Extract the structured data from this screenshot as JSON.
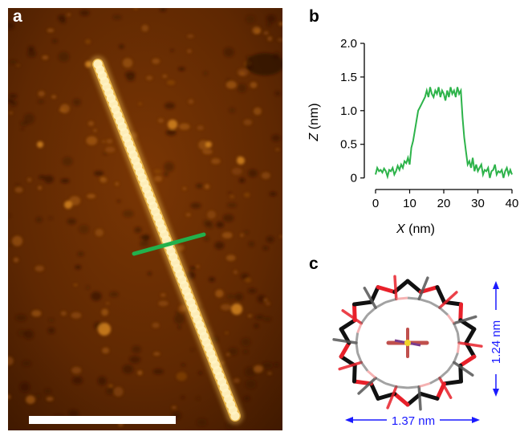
{
  "panels": {
    "a": {
      "letter": "a"
    },
    "b": {
      "letter": "b"
    },
    "c": {
      "letter": "c"
    }
  },
  "colors": {
    "profile_line": "#2db34a",
    "afm_background": "#6b2e02",
    "afm_fiber": "#f7dd8a",
    "afm_linecut": "#22b14c",
    "scale_bar": "#ffffff",
    "dimension_arrows": "#1a1aff",
    "bond_carbon": "#111111",
    "bond_oxygen": "#e8202a"
  },
  "chart_data": {
    "type": "line",
    "xlabel_var": "X",
    "xlabel_unit": "(nm)",
    "ylabel_var": "Z",
    "ylabel_unit": "(nm)",
    "xlim": [
      0,
      40
    ],
    "ylim": [
      -0.1,
      2.0
    ],
    "xticks": [
      0,
      10,
      20,
      30,
      40
    ],
    "yticks": [
      0,
      0.5,
      1.0,
      1.5,
      2.0
    ],
    "xtick_labels": [
      "0",
      "10",
      "20",
      "30",
      "40"
    ],
    "ytick_labels": [
      "0",
      "0.5",
      "1.0",
      "1.5",
      "2.0"
    ],
    "series": [
      {
        "x": [
          0,
          0.5,
          1,
          1.5,
          2,
          2.5,
          3,
          3.5,
          4,
          4.5,
          5,
          5.5,
          6,
          6.5,
          7,
          7.5,
          8,
          8.5,
          9,
          9.5,
          10,
          10.5,
          11,
          11.5,
          12,
          12.5,
          13,
          13.5,
          14,
          14.5,
          15,
          15.5,
          16,
          16.5,
          17,
          17.5,
          18,
          18.5,
          19,
          19.5,
          20,
          20.5,
          21,
          21.5,
          22,
          22.5,
          23,
          23.5,
          24,
          24.5,
          25,
          25.5,
          26,
          26.5,
          27,
          27.5,
          28,
          28.5,
          29,
          29.5,
          30,
          30.5,
          31,
          31.5,
          32,
          32.5,
          33,
          33.5,
          34,
          34.5,
          35,
          35.5,
          36,
          36.5,
          37,
          37.5,
          38,
          38.5,
          39,
          39.5,
          40
        ],
        "y": [
          0.05,
          0.15,
          0.1,
          0.12,
          0.08,
          0.14,
          0.1,
          0.02,
          0.12,
          0.1,
          0.15,
          0.05,
          0.1,
          0.18,
          0.12,
          0.2,
          0.15,
          0.25,
          0.22,
          0.3,
          0.2,
          0.45,
          0.55,
          0.7,
          0.85,
          1.0,
          1.05,
          1.1,
          1.15,
          1.2,
          1.3,
          1.2,
          1.35,
          1.25,
          1.2,
          1.3,
          1.25,
          1.35,
          1.2,
          1.3,
          1.25,
          1.15,
          1.3,
          1.2,
          1.35,
          1.25,
          1.3,
          1.2,
          1.35,
          1.25,
          1.3,
          0.9,
          0.6,
          0.4,
          0.2,
          0.25,
          0.15,
          0.3,
          0.1,
          0.2,
          0.1,
          0.15,
          0.2,
          0.05,
          0.12,
          0.1,
          0.15,
          0.0,
          0.1,
          0.12,
          0.2,
          0.05,
          0.1,
          0.08,
          0.12,
          0.0,
          0.1,
          0.15,
          0.05,
          0.12,
          0.05
        ]
      }
    ]
  },
  "molecule_labels": {
    "width": "1.37 nm",
    "height": "1.24 nm"
  }
}
